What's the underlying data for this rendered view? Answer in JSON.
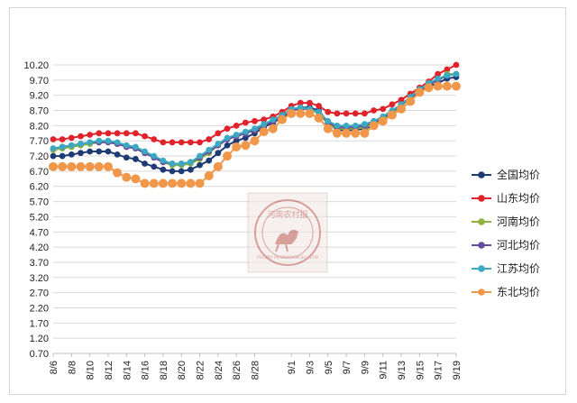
{
  "chart_data": {
    "type": "line",
    "title": "",
    "xlabel": "",
    "ylabel": "",
    "ylim": [
      0.7,
      10.2
    ],
    "y_ticks": [
      "0.70",
      "1.20",
      "1.70",
      "2.20",
      "2.70",
      "3.20",
      "3.70",
      "4.20",
      "4.70",
      "5.20",
      "5.70",
      "6.20",
      "6.70",
      "7.20",
      "7.70",
      "8.20",
      "8.70",
      "9.20",
      "9.70",
      "10.20"
    ],
    "x_tick_labels": [
      "8/6",
      "8/8",
      "8/10",
      "8/12",
      "8/14",
      "8/16",
      "8/18",
      "8/20",
      "8/22",
      "8/24",
      "8/26",
      "8/28",
      "9/1",
      "9/3",
      "9/5",
      "9/7",
      "9/9",
      "9/11",
      "9/13",
      "9/15",
      "9/17",
      "9/19"
    ],
    "x": [
      "8/6",
      "8/7",
      "8/8",
      "8/9",
      "8/10",
      "8/11",
      "8/12",
      "8/13",
      "8/14",
      "8/15",
      "8/16",
      "8/17",
      "8/18",
      "8/19",
      "8/20",
      "8/21",
      "8/22",
      "8/23",
      "8/24",
      "8/25",
      "8/26",
      "8/27",
      "8/28",
      "8/29",
      "8/30",
      "8/31",
      "9/1",
      "9/2",
      "9/3",
      "9/4",
      "9/5",
      "9/6",
      "9/7",
      "9/8",
      "9/9",
      "9/10",
      "9/11",
      "9/12",
      "9/13",
      "9/14",
      "9/15",
      "9/16",
      "9/17",
      "9/18",
      "9/19"
    ],
    "grid": true,
    "legend_position": "right",
    "series": [
      {
        "name": "全国均价",
        "color": "#1f3b73",
        "values": [
          7.2,
          7.2,
          7.25,
          7.3,
          7.35,
          7.35,
          7.35,
          7.25,
          7.15,
          7.1,
          6.95,
          6.85,
          6.75,
          6.7,
          6.7,
          6.75,
          6.9,
          7.05,
          7.3,
          7.55,
          7.7,
          7.8,
          7.95,
          8.15,
          8.3,
          8.45,
          8.7,
          8.8,
          8.8,
          8.7,
          8.3,
          8.05,
          8.05,
          8.05,
          8.1,
          8.2,
          8.35,
          8.6,
          8.9,
          9.1,
          9.35,
          9.5,
          9.6,
          9.75,
          9.8
        ]
      },
      {
        "name": "山东均价",
        "color": "#e0222a",
        "values": [
          7.75,
          7.75,
          7.8,
          7.85,
          7.9,
          7.95,
          7.95,
          7.95,
          7.95,
          7.95,
          7.85,
          7.75,
          7.65,
          7.65,
          7.65,
          7.65,
          7.65,
          7.75,
          7.95,
          8.1,
          8.2,
          8.3,
          8.35,
          8.4,
          8.5,
          8.65,
          8.85,
          8.95,
          8.95,
          8.85,
          8.65,
          8.6,
          8.6,
          8.6,
          8.6,
          8.7,
          8.75,
          8.9,
          9.05,
          9.25,
          9.45,
          9.65,
          9.9,
          10.05,
          10.2
        ]
      },
      {
        "name": "河南均价",
        "color": "#8db33c",
        "values": [
          7.4,
          7.45,
          7.5,
          7.55,
          7.6,
          7.65,
          7.65,
          7.6,
          7.55,
          7.45,
          7.3,
          7.15,
          7.0,
          6.9,
          6.9,
          6.95,
          7.1,
          7.3,
          7.55,
          7.75,
          7.85,
          7.95,
          8.05,
          8.2,
          8.35,
          8.5,
          8.7,
          8.75,
          8.75,
          8.6,
          8.25,
          8.1,
          8.1,
          8.1,
          8.15,
          8.25,
          8.4,
          8.6,
          8.85,
          9.1,
          9.35,
          9.55,
          9.7,
          9.9,
          9.9
        ]
      },
      {
        "name": "河北均价",
        "color": "#6a4a9c",
        "values": [
          7.45,
          7.5,
          7.55,
          7.6,
          7.65,
          7.65,
          7.65,
          7.6,
          7.5,
          7.45,
          7.3,
          7.15,
          7.0,
          6.95,
          6.95,
          7.0,
          7.15,
          7.35,
          7.55,
          7.75,
          7.85,
          7.95,
          8.05,
          8.2,
          8.35,
          8.5,
          8.7,
          8.75,
          8.75,
          8.65,
          8.3,
          8.15,
          8.15,
          8.15,
          8.2,
          8.3,
          8.45,
          8.65,
          8.9,
          9.1,
          9.35,
          9.55,
          9.7,
          9.85,
          9.9
        ]
      },
      {
        "name": "江苏均价",
        "color": "#3ca9c2",
        "values": [
          7.45,
          7.5,
          7.55,
          7.6,
          7.65,
          7.7,
          7.7,
          7.65,
          7.55,
          7.5,
          7.35,
          7.2,
          7.05,
          6.95,
          6.95,
          7.0,
          7.2,
          7.4,
          7.6,
          7.8,
          7.9,
          8.0,
          8.1,
          8.25,
          8.4,
          8.55,
          8.75,
          8.8,
          8.75,
          8.65,
          8.35,
          8.2,
          8.2,
          8.2,
          8.25,
          8.35,
          8.5,
          8.7,
          8.9,
          9.15,
          9.4,
          9.6,
          9.75,
          9.85,
          9.9
        ]
      },
      {
        "name": "东北均价",
        "color": "#f0974a",
        "values": [
          6.85,
          6.85,
          6.85,
          6.85,
          6.85,
          6.85,
          6.85,
          6.65,
          6.5,
          6.45,
          6.3,
          6.3,
          6.3,
          6.3,
          6.3,
          6.3,
          6.3,
          6.55,
          6.85,
          7.2,
          7.5,
          7.55,
          7.7,
          8.0,
          8.1,
          8.4,
          8.6,
          8.6,
          8.6,
          8.45,
          8.1,
          7.95,
          7.95,
          7.95,
          7.95,
          8.2,
          8.35,
          8.55,
          8.75,
          9.0,
          9.3,
          9.45,
          9.5,
          9.5,
          9.5
        ]
      }
    ]
  },
  "watermark": {
    "text_top": "河南农村报",
    "text_bottom": "POULTRY INFORMATION BULLETIN"
  }
}
